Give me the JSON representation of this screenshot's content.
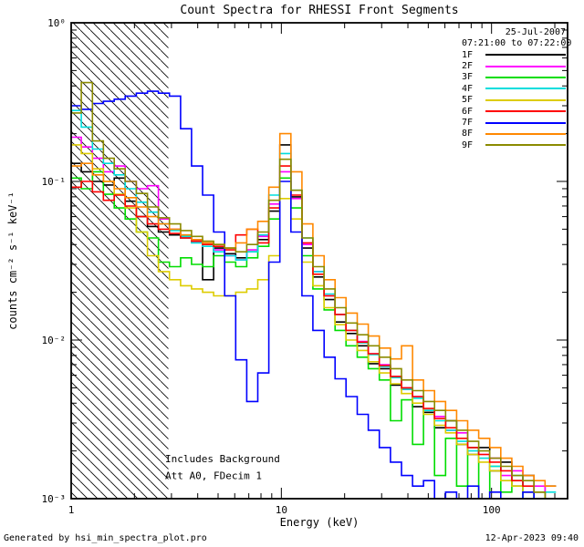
{
  "legend": {
    "date": "25-Jul-2007",
    "time_range": "07:21:00 to 07:22:00"
  },
  "footer": {
    "left": "Generated by hsi_min_spectra_plot.pro",
    "right": "12-Apr-2023 09:40"
  },
  "chart_data": {
    "type": "line",
    "step": true,
    "title": "Count Spectra for RHESSI Front Segments",
    "xlabel": "Energy (keV)",
    "ylabel": "counts cm⁻² s⁻¹ keV⁻¹",
    "xscale": "log",
    "yscale": "log",
    "xlim": [
      1,
      230
    ],
    "ylim": [
      0.001,
      1
    ],
    "grid": false,
    "legend_position": "top-right",
    "x_ticks": [
      {
        "v": 1,
        "label": "1"
      },
      {
        "v": 10,
        "label": "10"
      },
      {
        "v": 100,
        "label": "100"
      }
    ],
    "y_ticks": [
      {
        "v": 1,
        "label": "10⁰"
      },
      {
        "v": 0.1,
        "label": "10⁻¹"
      },
      {
        "v": 0.01,
        "label": "10⁻²"
      },
      {
        "v": 0.001,
        "label": "10⁻³"
      }
    ],
    "hatch_region": {
      "x0": 1.0,
      "x1": 2.9
    },
    "annotations": [
      {
        "text": "Includes Background",
        "x": 2.8,
        "y": 0.0017
      },
      {
        "text": "Att A0, FDecim 1",
        "x": 2.8,
        "y": 0.00133
      }
    ],
    "x": [
      1.05,
      1.19,
      1.34,
      1.51,
      1.7,
      1.92,
      2.17,
      2.45,
      2.76,
      3.12,
      3.52,
      3.97,
      4.48,
      5.06,
      5.71,
      6.44,
      7.27,
      8.21,
      9.26,
      10.45,
      11.8,
      13.3,
      15.0,
      17.0,
      19.1,
      21.6,
      24.4,
      27.5,
      31.1,
      35.1,
      39.6,
      44.7,
      50.4,
      56.9,
      64.2,
      72.5,
      81.8,
      92.3,
      104.2,
      117.6,
      132.7,
      149.8,
      169.1,
      190.8
    ],
    "series": [
      {
        "name": "1F",
        "color": "#000000",
        "values": [
          0.13,
          0.115,
          0.1,
          0.095,
          0.105,
          0.075,
          0.06,
          0.052,
          0.048,
          0.046,
          0.044,
          0.042,
          0.024,
          0.038,
          0.035,
          0.033,
          0.036,
          0.043,
          0.065,
          0.17,
          0.08,
          0.038,
          0.025,
          0.018,
          0.013,
          0.011,
          0.0092,
          0.0071,
          0.0066,
          0.0052,
          0.0049,
          0.0038,
          0.0035,
          0.0028,
          0.0031,
          0.0022,
          0.0019,
          0.0021,
          0.0015,
          0.0017,
          0.0012,
          0.0014,
          0.001,
          0.0012
        ]
      },
      {
        "name": "2F",
        "color": "#ff00ff",
        "values": [
          0.19,
          0.165,
          0.14,
          0.115,
          0.125,
          0.1,
          0.09,
          0.094,
          0.058,
          0.05,
          0.045,
          0.042,
          0.04,
          0.037,
          0.034,
          0.032,
          0.037,
          0.045,
          0.072,
          0.115,
          0.078,
          0.04,
          0.027,
          0.019,
          0.0145,
          0.0115,
          0.0098,
          0.0082,
          0.007,
          0.0059,
          0.005,
          0.0044,
          0.0036,
          0.0033,
          0.0027,
          0.0026,
          0.0021,
          0.0019,
          0.0018,
          0.0014,
          0.0015,
          0.0011,
          0.0012,
          0.001
        ]
      },
      {
        "name": "3F",
        "color": "#00dd00",
        "values": [
          0.105,
          0.09,
          0.115,
          0.083,
          0.068,
          0.058,
          0.048,
          0.044,
          0.031,
          0.029,
          0.033,
          0.03,
          0.029,
          0.034,
          0.031,
          0.029,
          0.033,
          0.039,
          0.058,
          0.105,
          0.068,
          0.034,
          0.021,
          0.0155,
          0.0115,
          0.0092,
          0.0078,
          0.0066,
          0.0056,
          0.0031,
          0.0042,
          0.0022,
          0.0036,
          0.0014,
          0.0024,
          0.0012,
          0.0021,
          0.001,
          0.0016,
          0.0011,
          0.0013,
          0.001,
          0.0011,
          0.001
        ]
      },
      {
        "name": "4F",
        "color": "#00dddd",
        "values": [
          0.28,
          0.22,
          0.16,
          0.13,
          0.11,
          0.09,
          0.074,
          0.064,
          0.054,
          0.049,
          0.045,
          0.041,
          0.039,
          0.036,
          0.034,
          0.032,
          0.036,
          0.046,
          0.082,
          0.15,
          0.088,
          0.044,
          0.027,
          0.0195,
          0.0145,
          0.0115,
          0.0096,
          0.0081,
          0.0068,
          0.0058,
          0.0049,
          0.0043,
          0.0036,
          0.0031,
          0.0027,
          0.0023,
          0.002,
          0.0018,
          0.0016,
          0.0013,
          0.0014,
          0.0011,
          0.001,
          0.0011
        ]
      },
      {
        "name": "5F",
        "color": "#ddcc00",
        "values": [
          0.17,
          0.15,
          0.12,
          0.1,
          0.083,
          0.068,
          0.048,
          0.034,
          0.027,
          0.024,
          0.022,
          0.021,
          0.02,
          0.019,
          0.019,
          0.02,
          0.021,
          0.024,
          0.034,
          0.078,
          0.058,
          0.031,
          0.022,
          0.016,
          0.0125,
          0.01,
          0.0086,
          0.0073,
          0.0062,
          0.0053,
          0.0046,
          0.004,
          0.0034,
          0.0029,
          0.0026,
          0.0022,
          0.0019,
          0.0017,
          0.0015,
          0.0013,
          0.0012,
          0.0011,
          0.001,
          0.001
        ]
      },
      {
        "name": "6F",
        "color": "#ff0000",
        "values": [
          0.092,
          0.1,
          0.086,
          0.076,
          0.082,
          0.07,
          0.06,
          0.054,
          0.05,
          0.047,
          0.044,
          0.042,
          0.04,
          0.039,
          0.037,
          0.046,
          0.05,
          0.041,
          0.068,
          0.125,
          0.082,
          0.041,
          0.026,
          0.019,
          0.0145,
          0.0115,
          0.0097,
          0.0082,
          0.0069,
          0.0059,
          0.005,
          0.0044,
          0.0037,
          0.0032,
          0.0028,
          0.0024,
          0.0021,
          0.0019,
          0.0017,
          0.0015,
          0.0013,
          0.0012,
          0.0011,
          0.001
        ]
      },
      {
        "name": "7F",
        "color": "#0000ff",
        "values": [
          0.3,
          0.285,
          0.31,
          0.32,
          0.33,
          0.345,
          0.36,
          0.37,
          0.36,
          0.345,
          0.215,
          0.125,
          0.082,
          0.048,
          0.019,
          0.0075,
          0.0041,
          0.0062,
          0.031,
          0.1,
          0.048,
          0.019,
          0.0115,
          0.0078,
          0.0057,
          0.0044,
          0.0034,
          0.0027,
          0.0021,
          0.0017,
          0.0014,
          0.0012,
          0.0013,
          0.001,
          0.0011,
          0.001,
          0.0012,
          0.001,
          0.0011,
          0.001,
          0.001,
          0.0011,
          0.001,
          0.001
        ]
      },
      {
        "name": "8F",
        "color": "#ff8800",
        "values": [
          0.125,
          0.13,
          0.11,
          0.1,
          0.09,
          0.079,
          0.069,
          0.06,
          0.054,
          0.05,
          0.046,
          0.043,
          0.041,
          0.04,
          0.038,
          0.041,
          0.05,
          0.056,
          0.092,
          0.2,
          0.115,
          0.054,
          0.034,
          0.024,
          0.0185,
          0.0148,
          0.0126,
          0.0106,
          0.0089,
          0.0076,
          0.0092,
          0.0056,
          0.0048,
          0.0041,
          0.0036,
          0.0031,
          0.0027,
          0.0024,
          0.0021,
          0.0018,
          0.0016,
          0.0014,
          0.0013,
          0.0012
        ]
      },
      {
        "name": "9F",
        "color": "#8b8b00",
        "values": [
          0.27,
          0.42,
          0.18,
          0.14,
          0.12,
          0.1,
          0.084,
          0.069,
          0.059,
          0.054,
          0.049,
          0.045,
          0.042,
          0.04,
          0.038,
          0.036,
          0.04,
          0.048,
          0.076,
          0.138,
          0.088,
          0.044,
          0.029,
          0.021,
          0.016,
          0.0128,
          0.0108,
          0.0092,
          0.0078,
          0.0066,
          0.0056,
          0.0048,
          0.0041,
          0.0036,
          0.0031,
          0.0027,
          0.0023,
          0.002,
          0.0018,
          0.0016,
          0.0014,
          0.0013,
          0.0011,
          0.001
        ]
      }
    ]
  }
}
